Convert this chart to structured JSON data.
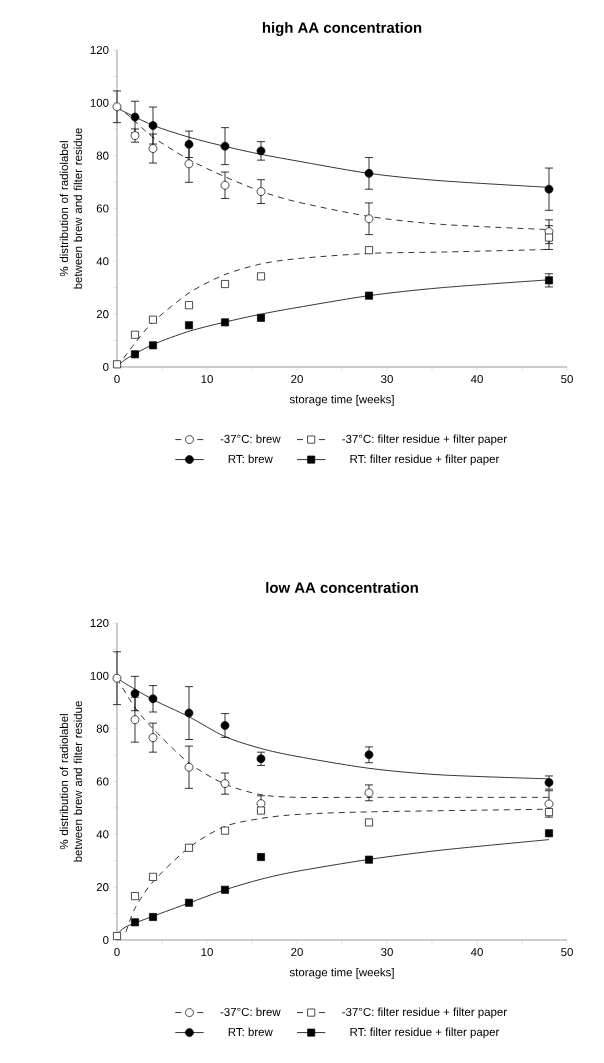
{
  "chart_data": [
    {
      "type": "scatter",
      "title": "high AA concentration",
      "xlabel": "storage time [weeks]",
      "ylabel": "% distribution of radiolabel between brew and filter residue",
      "xlim": [
        0,
        50
      ],
      "ylim": [
        0,
        120
      ],
      "xticks": [
        0,
        {
          "value": 5,
          "label": null
        },
        10,
        {
          "value": 15,
          "label": null
        },
        20,
        {
          "value": 25,
          "label": null
        },
        30,
        {
          "value": 35,
          "label": null
        },
        40,
        {
          "value": 45,
          "label": null
        },
        50
      ],
      "yticks": [
        0,
        {
          "value": 10,
          "label": null
        },
        20,
        {
          "value": 30,
          "label": null
        },
        40,
        {
          "value": 50,
          "label": null
        },
        60,
        {
          "value": 70,
          "label": null
        },
        80,
        {
          "value": 90,
          "label": null
        },
        100,
        {
          "value": 110,
          "label": null
        },
        120
      ],
      "legend": "bottom",
      "grid": false,
      "x": [
        0,
        2,
        4,
        8,
        12,
        16,
        28,
        48
      ],
      "series": [
        {
          "name": "-37°C: brew",
          "type": "scatter",
          "marker": "circle",
          "color": "#ffffff",
          "line_style": "dashed",
          "values": [
            98.5,
            87.6,
            82.7,
            76.9,
            68.8,
            66.4,
            56.1,
            51.2
          ],
          "errors": [
            6,
            2.5,
            5.5,
            7,
            5,
            4.5,
            6,
            4.5
          ]
        },
        {
          "name": "-37°C: filter residue + filter paper",
          "type": "scatter",
          "marker": "square",
          "color": "#ffffff",
          "line_style": "dashed",
          "values": [
            1,
            12.2,
            17.9,
            23.4,
            31.4,
            34.3,
            44.2,
            49
          ],
          "errors": [
            null,
            null,
            null,
            null,
            null,
            null,
            null,
            4.5
          ]
        },
        {
          "name": "RT: brew",
          "type": "scatter",
          "marker": "circle",
          "color": "#000000",
          "line_style": "solid",
          "values": [
            null,
            94.6,
            91.4,
            84.3,
            83.6,
            81.8,
            73.3,
            67.3
          ],
          "errors": [
            null,
            6,
            7,
            5,
            7,
            3.5,
            6,
            8
          ]
        },
        {
          "name": "RT: filter residue + filter paper",
          "type": "scatter",
          "marker": "square",
          "color": "#000000",
          "line_style": "solid",
          "values": [
            null,
            4.8,
            8.2,
            15.8,
            16.9,
            18.6,
            27.0,
            32.8
          ],
          "errors": [
            null,
            null,
            null,
            null,
            null,
            null,
            null,
            2.5
          ]
        },
        {
          "type": "line",
          "line_style": "dashed",
          "color": "#000000",
          "x": [
            0,
            2,
            4,
            8,
            12,
            16,
            20,
            28,
            36,
            48
          ],
          "values": [
            99,
            93,
            87,
            78.5,
            72,
            66.5,
            62.5,
            57,
            54,
            52
          ]
        },
        {
          "type": "line",
          "line_style": "dashed",
          "color": "#000000",
          "x": [
            0,
            2,
            4,
            8,
            12,
            16,
            20,
            28,
            36,
            48
          ],
          "values": [
            0,
            9,
            17,
            28,
            35,
            39,
            41,
            43,
            43.5,
            44.5
          ]
        },
        {
          "type": "line",
          "line_style": "solid",
          "color": "#000000",
          "x": [
            0,
            4,
            8,
            12,
            16,
            20,
            28,
            36,
            48
          ],
          "values": [
            98,
            91.5,
            87,
            83.5,
            80.5,
            78,
            73.3,
            70.5,
            68
          ]
        },
        {
          "type": "line",
          "line_style": "solid",
          "color": "#000000",
          "x": [
            0,
            1,
            4,
            8,
            12,
            16,
            20,
            28,
            36,
            48
          ],
          "values": [
            0,
            3,
            8.5,
            13.5,
            17,
            20,
            22.5,
            27,
            30,
            33
          ]
        }
      ]
    },
    {
      "type": "scatter",
      "title": "low AA concentration",
      "xlabel": "storage time [weeks]",
      "ylabel": "% distribution of radiolabel between brew and filter residue",
      "xlim": [
        0,
        50
      ],
      "ylim": [
        0,
        120
      ],
      "xticks": [
        0,
        {
          "value": 5,
          "label": null
        },
        10,
        {
          "value": 15,
          "label": null
        },
        20,
        {
          "value": 25,
          "label": null
        },
        30,
        {
          "value": 35,
          "label": null
        },
        40,
        {
          "value": 45,
          "label": null
        },
        50
      ],
      "yticks": [
        0,
        {
          "value": 10,
          "label": null
        },
        20,
        {
          "value": 30,
          "label": null
        },
        40,
        {
          "value": 50,
          "label": null
        },
        60,
        {
          "value": 70,
          "label": null
        },
        80,
        {
          "value": 90,
          "label": null
        },
        100,
        {
          "value": 110,
          "label": null
        },
        120
      ],
      "legend": "bottom",
      "grid": false,
      "x": [
        0,
        2,
        4,
        8,
        12,
        16,
        28,
        48
      ],
      "series": [
        {
          "name": "-37°C: brew",
          "type": "scatter",
          "marker": "circle",
          "color": "#ffffff",
          "line_style": "dashed",
          "values": [
            99.1,
            83.4,
            76.6,
            65.4,
            59.2,
            51.6,
            55.7,
            51.5
          ],
          "errors": [
            10,
            8.5,
            5.5,
            8,
            4,
            3,
            3,
            5
          ]
        },
        {
          "name": "-37°C: filter residue + filter paper",
          "type": "scatter",
          "marker": "square",
          "color": "#ffffff",
          "line_style": "dashed",
          "values": [
            1.5,
            16.6,
            23.9,
            34.9,
            41.4,
            49,
            44.5,
            48.4
          ],
          "errors": [
            null,
            null,
            null,
            null,
            null,
            null,
            null,
            null
          ]
        },
        {
          "name": "RT: brew",
          "type": "scatter",
          "marker": "circle",
          "color": "#000000",
          "line_style": "solid",
          "values": [
            null,
            93.3,
            91.3,
            85.9,
            81.2,
            68.6,
            70.1,
            59.6
          ],
          "errors": [
            null,
            6.5,
            5,
            10,
            4.5,
            2.5,
            3,
            2.5
          ]
        },
        {
          "name": "RT: filter residue + filter paper",
          "type": "scatter",
          "marker": "square",
          "color": "#000000",
          "line_style": "solid",
          "values": [
            null,
            6.7,
            8.7,
            14.1,
            19.0,
            31.4,
            30.4,
            40.4
          ],
          "errors": [
            null,
            null,
            null,
            null,
            null,
            null,
            null,
            null
          ]
        },
        {
          "type": "line",
          "line_style": "dashed",
          "color": "#000000",
          "x": [
            0,
            2,
            4,
            8,
            12,
            16,
            20,
            28,
            48
          ],
          "values": [
            99,
            88,
            80,
            67,
            59,
            55,
            54,
            54,
            54
          ]
        },
        {
          "type": "line",
          "line_style": "dashed",
          "color": "#000000",
          "x": [
            1,
            2,
            4,
            8,
            12,
            16,
            20,
            28,
            48
          ],
          "values": [
            3,
            12,
            22,
            35,
            43,
            46,
            47.5,
            48.5,
            49.5
          ]
        },
        {
          "type": "line",
          "line_style": "solid",
          "color": "#000000",
          "x": [
            0,
            4,
            8,
            12,
            16,
            20,
            28,
            36,
            48
          ],
          "values": [
            99,
            91,
            84.5,
            77,
            72.5,
            69.5,
            65,
            62.5,
            61
          ]
        },
        {
          "type": "line",
          "line_style": "solid",
          "color": "#000000",
          "x": [
            0,
            1,
            4,
            8,
            12,
            16,
            20,
            28,
            36,
            48
          ],
          "values": [
            2,
            5,
            9,
            14,
            19,
            23,
            26,
            30.5,
            34,
            38
          ]
        }
      ]
    }
  ]
}
